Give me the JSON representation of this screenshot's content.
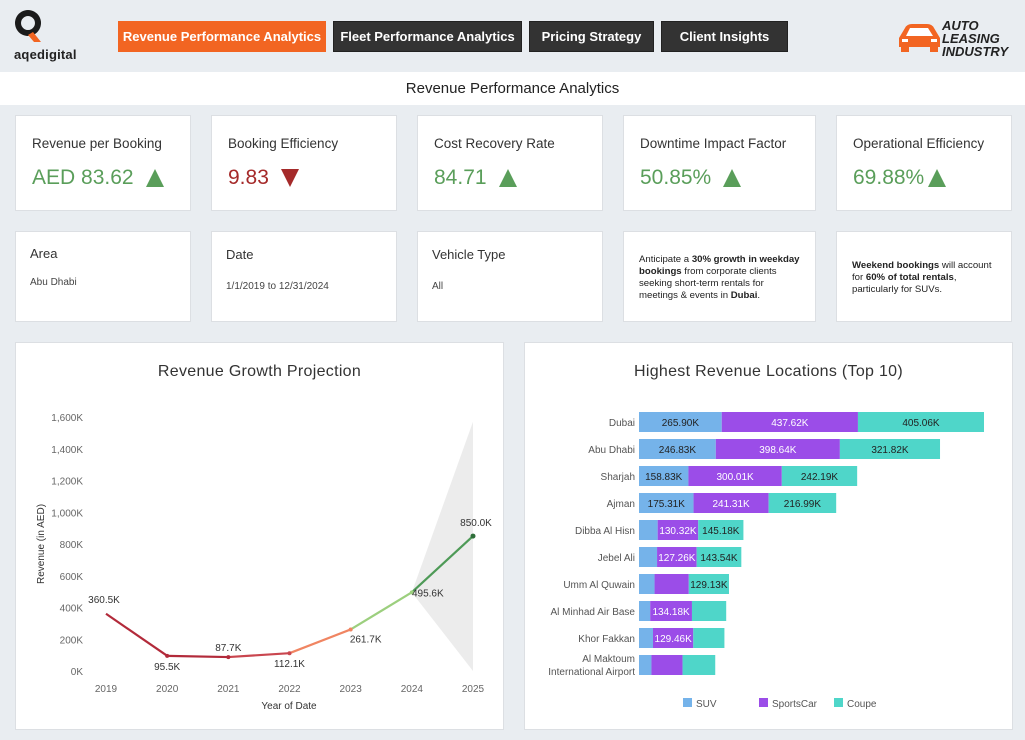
{
  "header": {
    "logo_text": "aqedigital",
    "brand_line1": "AUTO LEASING",
    "brand_line2": "INDUSTRY",
    "tabs": [
      {
        "label": "Revenue Performance Analytics",
        "active": true
      },
      {
        "label": "Fleet Performance Analytics",
        "active": false
      },
      {
        "label": "Pricing Strategy",
        "active": false
      },
      {
        "label": "Client Insights",
        "active": false
      }
    ]
  },
  "page_title": "Revenue Performance Analytics",
  "kpis": [
    {
      "label": "Revenue per Booking",
      "value": "AED 83.62",
      "trend": "up"
    },
    {
      "label": "Booking Efficiency",
      "value": "9.83",
      "trend": "down"
    },
    {
      "label": "Cost Recovery Rate",
      "value": "84.71",
      "trend": "up"
    },
    {
      "label": "Downtime Impact Factor",
      "value": "50.85%",
      "trend": "up"
    },
    {
      "label": "Operational Efficiency",
      "value": "69.88%",
      "trend": "up"
    }
  ],
  "filters": [
    {
      "label": "Area",
      "value": "Abu Dhabi"
    },
    {
      "label": "Date",
      "value": "1/1/2019 to 12/31/2024"
    },
    {
      "label": "Vehicle Type",
      "value": "All"
    }
  ],
  "insights": {
    "weekday": {
      "p1": "Anticipate a ",
      "b1": "30% growth in weekday bookings",
      "p2": " from corporate clients seeking short-term rentals for meetings & events in ",
      "b2": "Dubai",
      "p3": "."
    },
    "weekend": {
      "b1": "Weekend bookings",
      "p1": " will account for ",
      "b2": "60% of total rentals",
      "p2": ", particularly for SUVs."
    }
  },
  "colors": {
    "accent": "#f26522",
    "up": "#5a9e5a",
    "down": "#a52a2a",
    "suv": "#75b3ea",
    "sportscar": "#9b4de8",
    "coupe": "#4fd6c9"
  },
  "chart_data": [
    {
      "type": "line",
      "title": "Revenue Growth Projection",
      "xlabel": "Year of Date",
      "ylabel": "Revenue (in AED)",
      "x": [
        "2019",
        "2020",
        "2021",
        "2022",
        "2023",
        "2024",
        "2025"
      ],
      "values": [
        360500,
        95500,
        87700,
        112100,
        261700,
        495600,
        850000
      ],
      "labels": [
        "360.5K",
        "95.5K",
        "87.7K",
        "112.1K",
        "261.7K",
        "495.6K",
        "850.0K"
      ],
      "ylim": [
        0,
        1600000
      ],
      "yticks": [
        0,
        200000,
        400000,
        600000,
        800000,
        1000000,
        1200000,
        1400000,
        1600000
      ],
      "ytick_labels": [
        "0K",
        "200K",
        "400K",
        "600K",
        "800K",
        "1,000K",
        "1,200K",
        "1,400K",
        "1,600K"
      ],
      "forecast_band": {
        "x": [
          "2024",
          "2025"
        ],
        "lower": [
          495600,
          0
        ],
        "upper": [
          495600,
          1570000
        ]
      }
    },
    {
      "type": "bar",
      "orientation": "horizontal",
      "stacked": true,
      "title": "Highest Revenue Locations (Top 10)",
      "categories": [
        "Dubai",
        "Abu Dhabi",
        "Sharjah",
        "Ajman",
        "Dibba Al Hisn",
        "Jebel Ali",
        "Umm Al Quwain",
        "Al Minhad Air Base",
        "Khor Fakkan",
        "Al Maktoum International Airport"
      ],
      "series": [
        {
          "name": "SUV",
          "values": [
            265900,
            246830,
            158830,
            175310,
            60000,
            58000,
            50000,
            36000,
            45000,
            40000
          ],
          "labels": [
            "265.90K",
            "246.83K",
            "158.83K",
            "175.31K",
            "",
            "",
            "",
            "",
            "",
            ""
          ]
        },
        {
          "name": "SportsCar",
          "values": [
            437620,
            398640,
            300010,
            241310,
            130320,
            127260,
            110000,
            134180,
            129460,
            100000
          ],
          "labels": [
            "437.62K",
            "398.64K",
            "300.01K",
            "241.31K",
            "130.32K",
            "127.26K",
            "",
            "134.18K",
            "129.46K",
            ""
          ]
        },
        {
          "name": "Coupe",
          "values": [
            405060,
            321820,
            242190,
            216990,
            145180,
            143540,
            129130,
            110000,
            100000,
            105000
          ],
          "labels": [
            "405.06K",
            "321.82K",
            "242.19K",
            "216.99K",
            "145.18K",
            "143.54K",
            "129.13K",
            "",
            "",
            ""
          ]
        }
      ],
      "legend": [
        "SUV",
        "SportsCar",
        "Coupe"
      ]
    }
  ]
}
